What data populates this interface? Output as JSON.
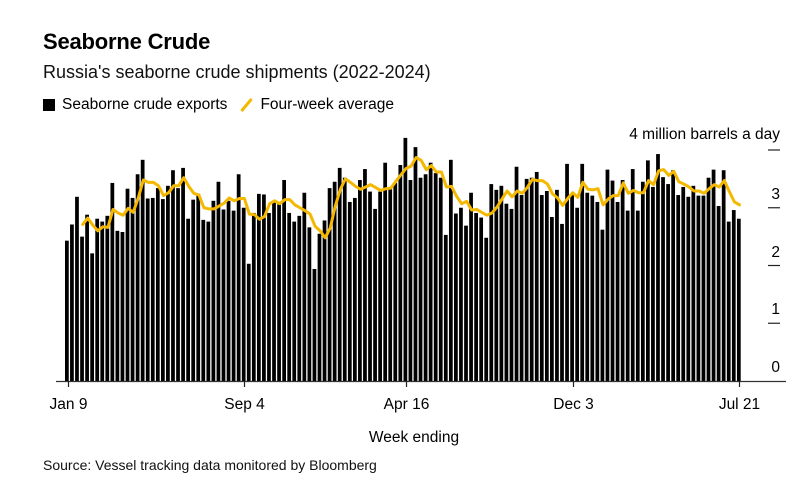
{
  "header": {
    "title": "Seaborne Crude",
    "subtitle": "Russia's seaborne crude shipments (2022-2024)"
  },
  "legend": {
    "items": [
      {
        "label": "Seaborne crude exports",
        "icon": "black-square-icon",
        "color": "#000000"
      },
      {
        "label": "Four-week average",
        "icon": "gold-line-icon",
        "color": "#F5B800"
      }
    ]
  },
  "footer": {
    "source": "Source: Vessel tracking data monitored by Bloomberg"
  },
  "chart_data": {
    "type": "bar",
    "title": "Seaborne Crude",
    "subtitle": "Russia's seaborne crude shipments (2022-2024)",
    "xlabel": "Week ending",
    "ylabel": "4 million barrels a day",
    "ylim": [
      0,
      4
    ],
    "y_ticks": [
      0,
      1,
      2,
      3,
      4
    ],
    "y_tick_labels": [
      "0",
      "1",
      "2",
      "3",
      ""
    ],
    "x_tick_labels": [
      {
        "label": "Jan 9",
        "index": 0
      },
      {
        "label": "Sep 4",
        "index": 35
      },
      {
        "label": "Apr 16",
        "index": 67
      },
      {
        "label": "Dec 3",
        "index": 100
      },
      {
        "label": "Jul 21",
        "index": 133
      }
    ],
    "grid": false,
    "legend_position": "top-left",
    "series": [
      {
        "name": "Seaborne crude exports",
        "type": "bar",
        "color": "#000000",
        "values": [
          2.43,
          2.71,
          3.19,
          2.5,
          2.88,
          2.21,
          2.81,
          2.76,
          2.86,
          3.43,
          2.6,
          2.58,
          3.33,
          3.17,
          3.58,
          3.83,
          3.16,
          3.17,
          3.34,
          3.15,
          3.38,
          3.65,
          3.34,
          3.69,
          2.81,
          3.14,
          3.24,
          2.79,
          2.76,
          3.12,
          3.45,
          2.97,
          3.12,
          2.95,
          3.58,
          3.0,
          2.03,
          2.91,
          3.24,
          3.23,
          2.91,
          3.09,
          3.06,
          3.48,
          2.91,
          2.76,
          2.86,
          3.26,
          2.66,
          1.94,
          2.55,
          2.78,
          3.34,
          3.45,
          3.69,
          3.52,
          3.1,
          3.17,
          3.48,
          3.67,
          3.28,
          2.98,
          3.28,
          3.78,
          3.33,
          3.43,
          3.74,
          4.21,
          3.48,
          4.05,
          3.52,
          3.58,
          3.78,
          3.6,
          3.52,
          2.53,
          3.83,
          2.9,
          3.0,
          2.69,
          3.26,
          2.91,
          2.83,
          2.48,
          3.41,
          3.31,
          3.38,
          3.07,
          2.98,
          3.71,
          3.22,
          3.5,
          3.52,
          3.62,
          3.22,
          3.29,
          2.84,
          3.31,
          2.72,
          3.76,
          3.24,
          3.0,
          3.76,
          3.26,
          3.21,
          3.1,
          2.62,
          3.66,
          3.47,
          3.1,
          3.48,
          2.95,
          3.67,
          2.95,
          3.45,
          3.82,
          3.36,
          3.93,
          3.53,
          3.41,
          3.65,
          3.22,
          3.36,
          3.19,
          3.38,
          3.21,
          3.21,
          3.52,
          3.66,
          3.03,
          3.65,
          2.76,
          2.96,
          2.81
        ]
      },
      {
        "name": "Four-week average",
        "type": "line",
        "color": "#F5B800",
        "start_index": 3,
        "values": [
          2.71,
          2.82,
          2.7,
          2.6,
          2.67,
          2.66,
          2.97,
          2.91,
          2.87,
          2.99,
          2.92,
          3.17,
          3.48,
          3.44,
          3.44,
          3.38,
          3.21,
          3.26,
          3.38,
          3.38,
          3.52,
          3.37,
          3.25,
          3.22,
          3.0,
          2.98,
          2.98,
          3.03,
          3.08,
          3.17,
          3.12,
          3.16,
          3.16,
          2.89,
          2.88,
          2.8,
          2.85,
          3.07,
          3.12,
          3.07,
          3.14,
          3.14,
          3.05,
          3.0,
          2.95,
          2.89,
          2.68,
          2.6,
          2.48,
          2.65,
          3.03,
          3.32,
          3.5,
          3.44,
          3.37,
          3.32,
          3.36,
          3.4,
          3.35,
          3.3,
          3.33,
          3.34,
          3.46,
          3.57,
          3.68,
          3.72,
          3.87,
          3.82,
          3.66,
          3.73,
          3.62,
          3.62,
          3.36,
          3.37,
          3.2,
          3.07,
          3.11,
          2.96,
          2.97,
          2.92,
          2.87,
          2.91,
          3.01,
          3.15,
          3.29,
          3.19,
          3.29,
          3.25,
          3.35,
          3.49,
          3.47,
          3.47,
          3.41,
          3.24,
          3.17,
          3.04,
          3.16,
          3.26,
          3.18,
          3.44,
          3.32,
          3.31,
          3.33,
          3.05,
          3.15,
          3.21,
          3.21,
          3.43,
          3.25,
          3.3,
          3.26,
          3.26,
          3.47,
          3.4,
          3.64,
          3.66,
          3.56,
          3.63,
          3.45,
          3.41,
          3.36,
          3.29,
          3.29,
          3.25,
          3.33,
          3.4,
          3.36,
          3.47,
          3.28,
          3.1,
          3.05
        ]
      }
    ]
  }
}
